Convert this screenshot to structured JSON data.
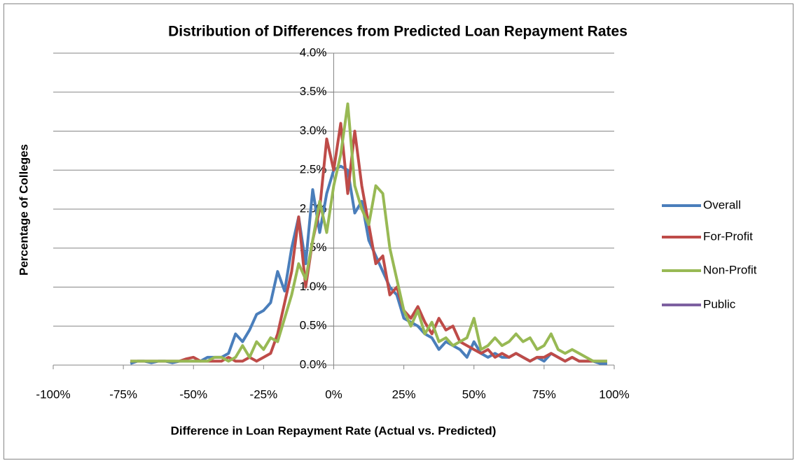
{
  "chart_data": {
    "type": "line",
    "title": "Distribution of Differences from Predicted Loan Repayment Rates",
    "xlabel": "Difference in Loan Repayment Rate (Actual vs. Predicted)",
    "ylabel": "Percentage of Colleges",
    "x": [
      -72.5,
      -70,
      -67.5,
      -65,
      -62.5,
      -60,
      -57.5,
      -55,
      -52.5,
      -50,
      -47.5,
      -45,
      -42.5,
      -40,
      -37.5,
      -35,
      -32.5,
      -30,
      -27.5,
      -25,
      -22.5,
      -20,
      -17.5,
      -15,
      -12.5,
      -10,
      -7.5,
      -5,
      -2.5,
      0,
      2.5,
      5,
      7.5,
      10,
      12.5,
      15,
      17.5,
      20,
      22.5,
      25,
      27.5,
      30,
      32.5,
      35,
      37.5,
      40,
      42.5,
      45,
      47.5,
      50,
      52.5,
      55,
      57.5,
      60,
      62.5,
      65,
      67.5,
      70,
      72.5,
      75,
      77.5,
      80,
      82.5,
      85,
      87.5,
      90,
      92.5,
      95,
      97.5
    ],
    "series": [
      {
        "name": "Overall",
        "color": "#4a7ebb",
        "values": [
          0.02,
          0.05,
          0.05,
          0.03,
          0.05,
          0.05,
          0.03,
          0.05,
          0.05,
          0.05,
          0.05,
          0.1,
          0.1,
          0.1,
          0.15,
          0.4,
          0.3,
          0.45,
          0.65,
          0.7,
          0.8,
          1.2,
          0.95,
          1.5,
          1.9,
          1.3,
          2.25,
          1.7,
          2.2,
          2.5,
          2.55,
          2.5,
          1.95,
          2.1,
          1.6,
          1.4,
          1.2,
          1.0,
          0.9,
          0.6,
          0.55,
          0.5,
          0.4,
          0.35,
          0.2,
          0.3,
          0.25,
          0.2,
          0.1,
          0.3,
          0.15,
          0.1,
          0.15,
          0.1,
          0.1,
          0.15,
          0.1,
          0.05,
          0.1,
          0.05,
          0.15,
          0.1,
          0.05,
          0.1,
          0.05,
          0.05,
          0.05,
          0.02,
          0.02
        ]
      },
      {
        "name": "For-Profit",
        "color": "#be4b48",
        "values": [
          0.05,
          0.05,
          0.05,
          0.05,
          0.05,
          0.05,
          0.05,
          0.05,
          0.08,
          0.1,
          0.05,
          0.05,
          0.05,
          0.05,
          0.1,
          0.05,
          0.05,
          0.1,
          0.05,
          0.1,
          0.15,
          0.4,
          0.8,
          1.2,
          1.9,
          1.0,
          1.6,
          2.0,
          2.9,
          2.5,
          3.1,
          2.2,
          3.0,
          2.3,
          1.8,
          1.3,
          1.4,
          0.9,
          1.0,
          0.7,
          0.6,
          0.75,
          0.55,
          0.4,
          0.6,
          0.45,
          0.5,
          0.3,
          0.25,
          0.2,
          0.15,
          0.2,
          0.1,
          0.15,
          0.1,
          0.15,
          0.1,
          0.05,
          0.1,
          0.1,
          0.15,
          0.1,
          0.05,
          0.1,
          0.05,
          0.05,
          0.05,
          0.05,
          0.05
        ]
      },
      {
        "name": "Non-Profit",
        "color": "#98b954",
        "values": [
          0.05,
          0.05,
          0.05,
          0.05,
          0.05,
          0.05,
          0.05,
          0.05,
          0.05,
          0.05,
          0.05,
          0.05,
          0.1,
          0.1,
          0.05,
          0.1,
          0.25,
          0.1,
          0.3,
          0.2,
          0.35,
          0.3,
          0.6,
          0.9,
          1.3,
          1.1,
          1.6,
          2.1,
          1.7,
          2.3,
          2.7,
          3.35,
          2.3,
          2.0,
          1.8,
          2.3,
          2.2,
          1.5,
          1.1,
          0.7,
          0.5,
          0.7,
          0.4,
          0.55,
          0.3,
          0.35,
          0.25,
          0.3,
          0.35,
          0.6,
          0.2,
          0.25,
          0.35,
          0.25,
          0.3,
          0.4,
          0.3,
          0.35,
          0.2,
          0.25,
          0.4,
          0.2,
          0.15,
          0.2,
          0.15,
          0.1,
          0.05,
          0.05,
          0.05
        ]
      },
      {
        "name": "Public",
        "color": "#7d60a0",
        "values": [
          null,
          null,
          null,
          null,
          null,
          null,
          null,
          null,
          null,
          null,
          null,
          null,
          null,
          null,
          null,
          null,
          null,
          null,
          null,
          null,
          null,
          null,
          null,
          null,
          null,
          null,
          null,
          null,
          null,
          null,
          null,
          null,
          null,
          null,
          null,
          null,
          null,
          null,
          null,
          null,
          null,
          null,
          null,
          null,
          null,
          null,
          null,
          null,
          null,
          null,
          null,
          null,
          null,
          null,
          null,
          null,
          null,
          null,
          null,
          null,
          null,
          null,
          null,
          null,
          null,
          null,
          null,
          null,
          null
        ]
      }
    ],
    "xlim": [
      -100,
      100
    ],
    "xticks": [
      {
        "value": -100,
        "label": "-100%"
      },
      {
        "value": -75,
        "label": "-75%"
      },
      {
        "value": -50,
        "label": "-50%"
      },
      {
        "value": -25,
        "label": "-25%"
      },
      {
        "value": 0,
        "label": "0%"
      },
      {
        "value": 25,
        "label": "25%"
      },
      {
        "value": 50,
        "label": "50%"
      },
      {
        "value": 75,
        "label": "75%"
      },
      {
        "value": 100,
        "label": "100%"
      }
    ],
    "ylim": [
      0,
      4
    ],
    "yticks": [
      {
        "value": 0,
        "label": "0.0%"
      },
      {
        "value": 0.5,
        "label": "0.5%"
      },
      {
        "value": 1,
        "label": "1.0%"
      },
      {
        "value": 1.5,
        "label": "1.5%"
      },
      {
        "value": 2,
        "label": "2.0%"
      },
      {
        "value": 2.5,
        "label": "2.5%"
      },
      {
        "value": 3,
        "label": "3.0%"
      },
      {
        "value": 3.5,
        "label": "3.5%"
      },
      {
        "value": 4,
        "label": "4.0%"
      }
    ],
    "grid": true,
    "legend": "right"
  }
}
